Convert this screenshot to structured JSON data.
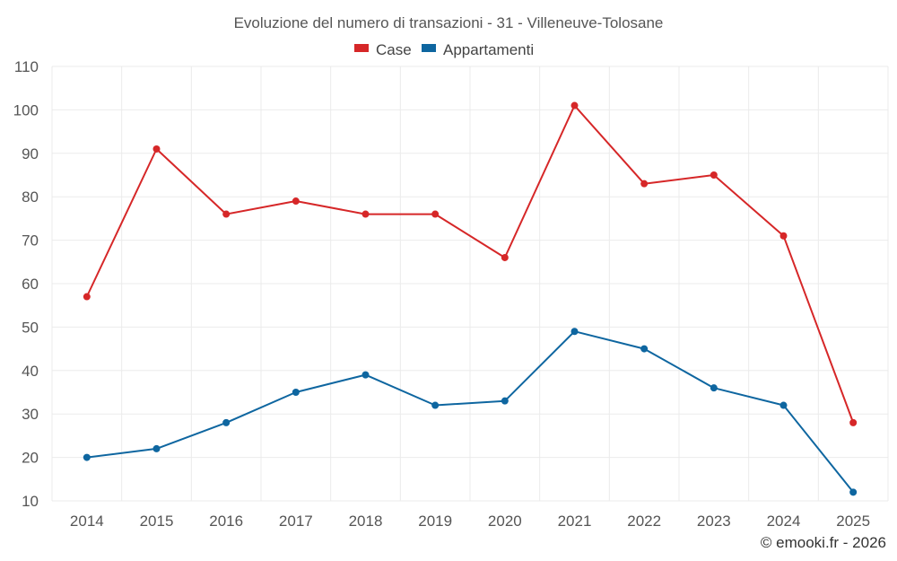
{
  "chart_data": {
    "type": "line",
    "title": "Evoluzione del numero di transazioni - 31 - Villeneuve-Tolosane",
    "categories": [
      "2014",
      "2015",
      "2016",
      "2017",
      "2018",
      "2019",
      "2020",
      "2021",
      "2022",
      "2023",
      "2024",
      "2025"
    ],
    "series": [
      {
        "name": "Case",
        "color": "#d62728",
        "values": [
          57,
          91,
          76,
          79,
          76,
          76,
          66,
          101,
          83,
          85,
          71,
          28
        ]
      },
      {
        "name": "Appartamenti",
        "color": "#0e66a0",
        "values": [
          20,
          22,
          28,
          35,
          39,
          32,
          33,
          49,
          45,
          36,
          32,
          12
        ]
      }
    ],
    "y_ticks": [
      10,
      20,
      30,
      40,
      50,
      60,
      70,
      80,
      90,
      100,
      110
    ],
    "ylim": [
      10,
      110
    ],
    "grid": true,
    "legend_position": "top-center",
    "xlabel": "",
    "ylabel": ""
  },
  "credit": "© emooki.fr - 2026"
}
